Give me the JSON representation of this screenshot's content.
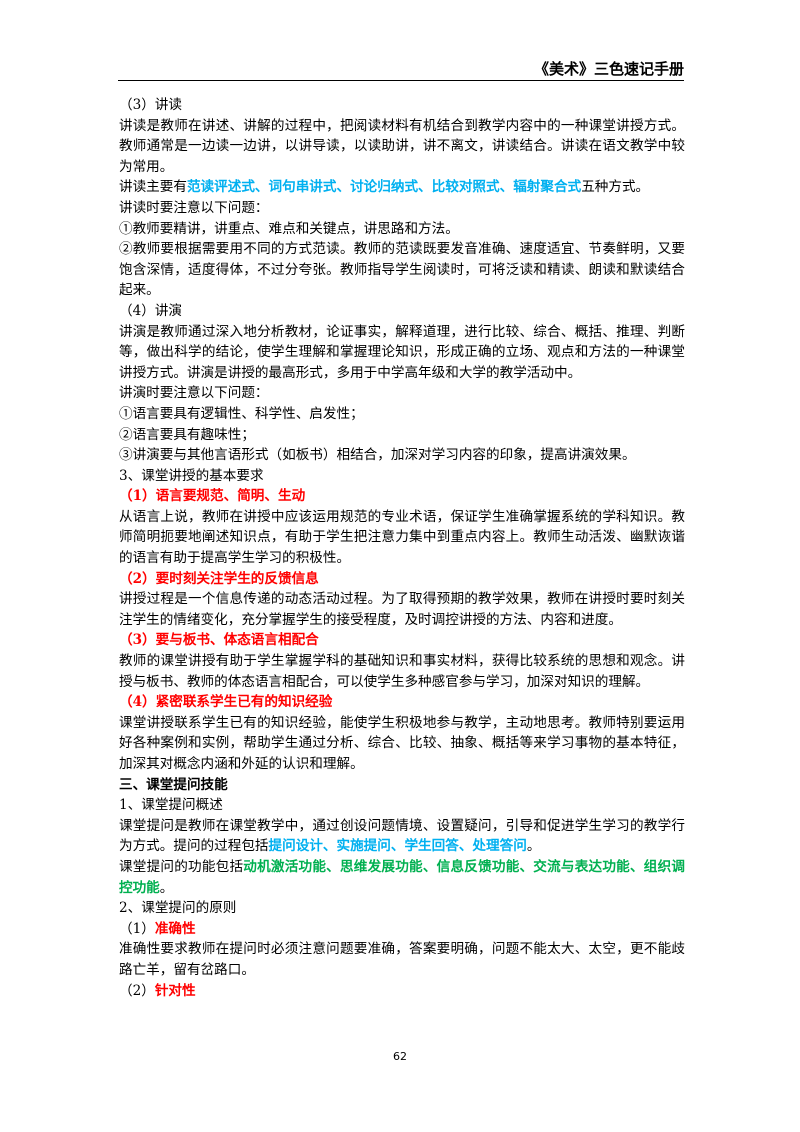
{
  "header": {
    "title": "《美术》三色速记手册"
  },
  "footer": {
    "page": "62"
  },
  "body": {
    "paragraphs": [
      [
        {
          "text": "（3）讲读"
        }
      ],
      [
        {
          "text": "讲读是教师在讲述、讲解的过程中，把阅读材料有机结合到教学内容中的一种课堂讲授方式。教师通常是一边读一边讲，以讲导读，以读助讲，讲不离文，讲读结合。讲读在语文教学中较为常用。"
        }
      ],
      [
        {
          "text": "讲读主要有"
        },
        {
          "text": "范读评述式、词句串讲式、讨论归纳式、比较对照式、辐射聚合式",
          "color": "#00b0f0",
          "bold": true
        },
        {
          "text": "五种方式。"
        }
      ],
      [
        {
          "text": "讲读时要注意以下问题："
        }
      ],
      [
        {
          "text": "①教师要精讲，讲重点、难点和关键点，讲思路和方法。"
        }
      ],
      [
        {
          "text": "②教师要根据需要用不同的方式范读。教师的范读既要发音准确、速度适宜、节奏鲜明，又要饱含深情，适度得体，不过分夸张。教师指导学生阅读时，可将泛读和精读、朗读和默读结合起来。"
        }
      ],
      [
        {
          "text": "（4）讲演"
        }
      ],
      [
        {
          "text": "讲演是教师通过深入地分析教材，论证事实，解释道理，进行比较、综合、概括、推理、判断等，做出科学的结论，使学生理解和掌握理论知识，形成正确的立场、观点和方法的一种课堂讲授方式。讲演是讲授的最高形式，多用于中学高年级和大学的教学活动中。"
        }
      ],
      [
        {
          "text": "讲演时要注意以下问题："
        }
      ],
      [
        {
          "text": "①语言要具有逻辑性、科学性、启发性；"
        }
      ],
      [
        {
          "text": "②语言要具有趣味性；"
        }
      ],
      [
        {
          "text": "③讲演要与其他言语形式（如板书）相结合，加深对学习内容的印象，提高讲演效果。"
        }
      ],
      [
        {
          "text": "3、课堂讲授的基本要求"
        }
      ],
      [
        {
          "text": "（1）语言要规范、简明、生动",
          "color": "#ff0000",
          "bold": true
        }
      ],
      [
        {
          "text": "从语言上说，教师在讲授中应该运用规范的专业术语，保证学生准确掌握系统的学科知识。教师简明扼要地阐述知识点，有助于学生把注意力集中到重点内容上。教师生动活泼、幽默诙谐的语言有助于提高学生学习的积极性。"
        }
      ],
      [
        {
          "text": "（2）要时刻关注学生的反馈信息",
          "color": "#ff0000",
          "bold": true
        }
      ],
      [
        {
          "text": "讲授过程是一个信息传递的动态活动过程。为了取得预期的教学效果，教师在讲授时要时刻关注学生的情绪变化，充分掌握学生的接受程度，及时调控讲授的方法、内容和进度。"
        }
      ],
      [
        {
          "text": "（3）要与板书、体态语言相配合",
          "color": "#ff0000",
          "bold": true
        }
      ],
      [
        {
          "text": "教师的课堂讲授有助于学生掌握学科的基础知识和事实材料，获得比较系统的思想和观念。讲授与板书、教师的体态语言相配合，可以使学生多种感官参与学习，加深对知识的理解。"
        }
      ],
      [
        {
          "text": "（4）紧密联系学生已有的知识经验",
          "color": "#ff0000",
          "bold": true
        }
      ],
      [
        {
          "text": "课堂讲授联系学生已有的知识经验，能使学生积极地参与教学，主动地思考。教师特别要运用好各种案例和实例，帮助学生通过分析、综合、比较、抽象、概括等来学习事物的基本特征，加深其对概念内涵和外延的认识和理解。"
        }
      ],
      [
        {
          "text": "三、课堂提问技能",
          "bold": true
        }
      ],
      [
        {
          "text": "1、课堂提问概述"
        }
      ],
      [
        {
          "text": "课堂提问是教师在课堂教学中，通过创设问题情境、设置疑问，引导和促进学生学习的教学行为方式。提问的过程包括"
        },
        {
          "text": "提问设计、实施提问、学生回答、处理答问",
          "color": "#00b0f0",
          "bold": true
        },
        {
          "text": "。"
        }
      ],
      [
        {
          "text": "课堂提问的功能包括"
        },
        {
          "text": "动机激活功能、思维发展功能、信息反馈功能、交流与表达功能、组织调控功能",
          "color": "#00b050",
          "bold": true
        },
        {
          "text": "。"
        }
      ],
      [
        {
          "text": "2、课堂提问的原则"
        }
      ],
      [
        {
          "text": "（1）"
        },
        {
          "text": "准确性",
          "color": "#ff0000",
          "bold": true
        }
      ],
      [
        {
          "text": "准确性要求教师在提问时必须注意问题要准确，答案要明确，问题不能太大、太空，更不能歧路亡羊，留有岔路口。"
        }
      ],
      [
        {
          "text": "（2）"
        },
        {
          "text": "针对性",
          "color": "#ff0000",
          "bold": true
        }
      ]
    ]
  }
}
